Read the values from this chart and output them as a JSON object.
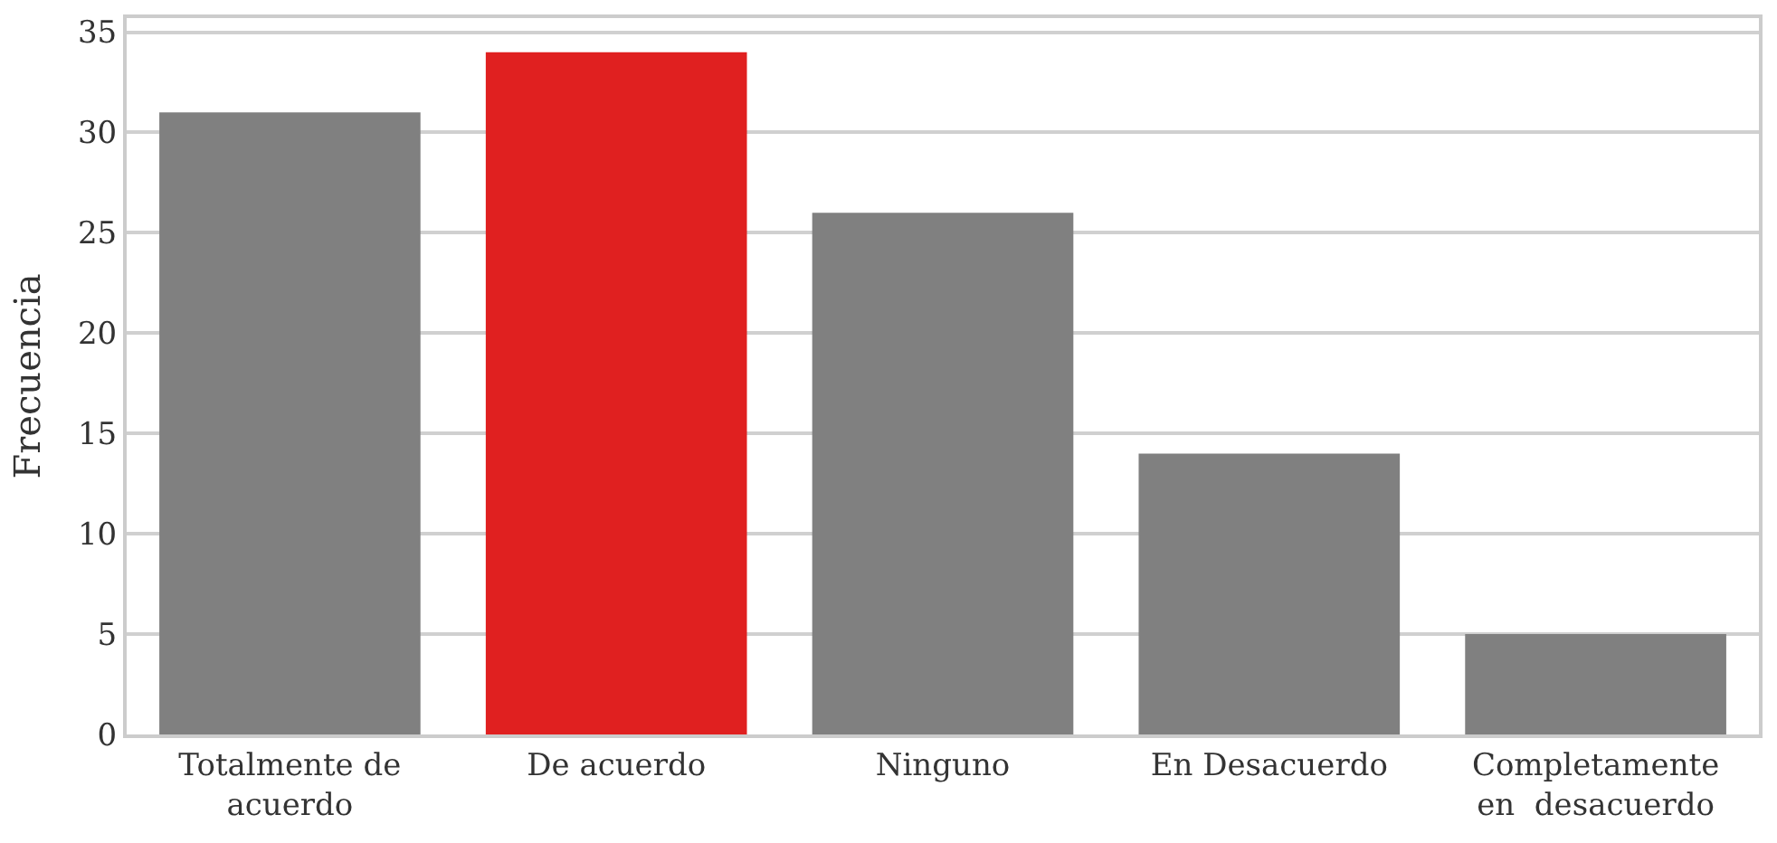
{
  "chart_data": {
    "type": "bar",
    "categories": [
      "Totalmente de\nacuerdo",
      "De acuerdo",
      "Ninguno",
      "En Desacuerdo",
      "Completamente\nen  desacuerdo"
    ],
    "values": [
      31,
      34,
      26,
      14,
      5
    ],
    "colors": [
      "#808080",
      "#e02020",
      "#808080",
      "#808080",
      "#808080"
    ],
    "ylabel": "Frecuencia",
    "ylim": [
      0,
      35.7
    ],
    "yticks": [
      0,
      5,
      10,
      15,
      20,
      25,
      30,
      35
    ],
    "grid": "y"
  }
}
